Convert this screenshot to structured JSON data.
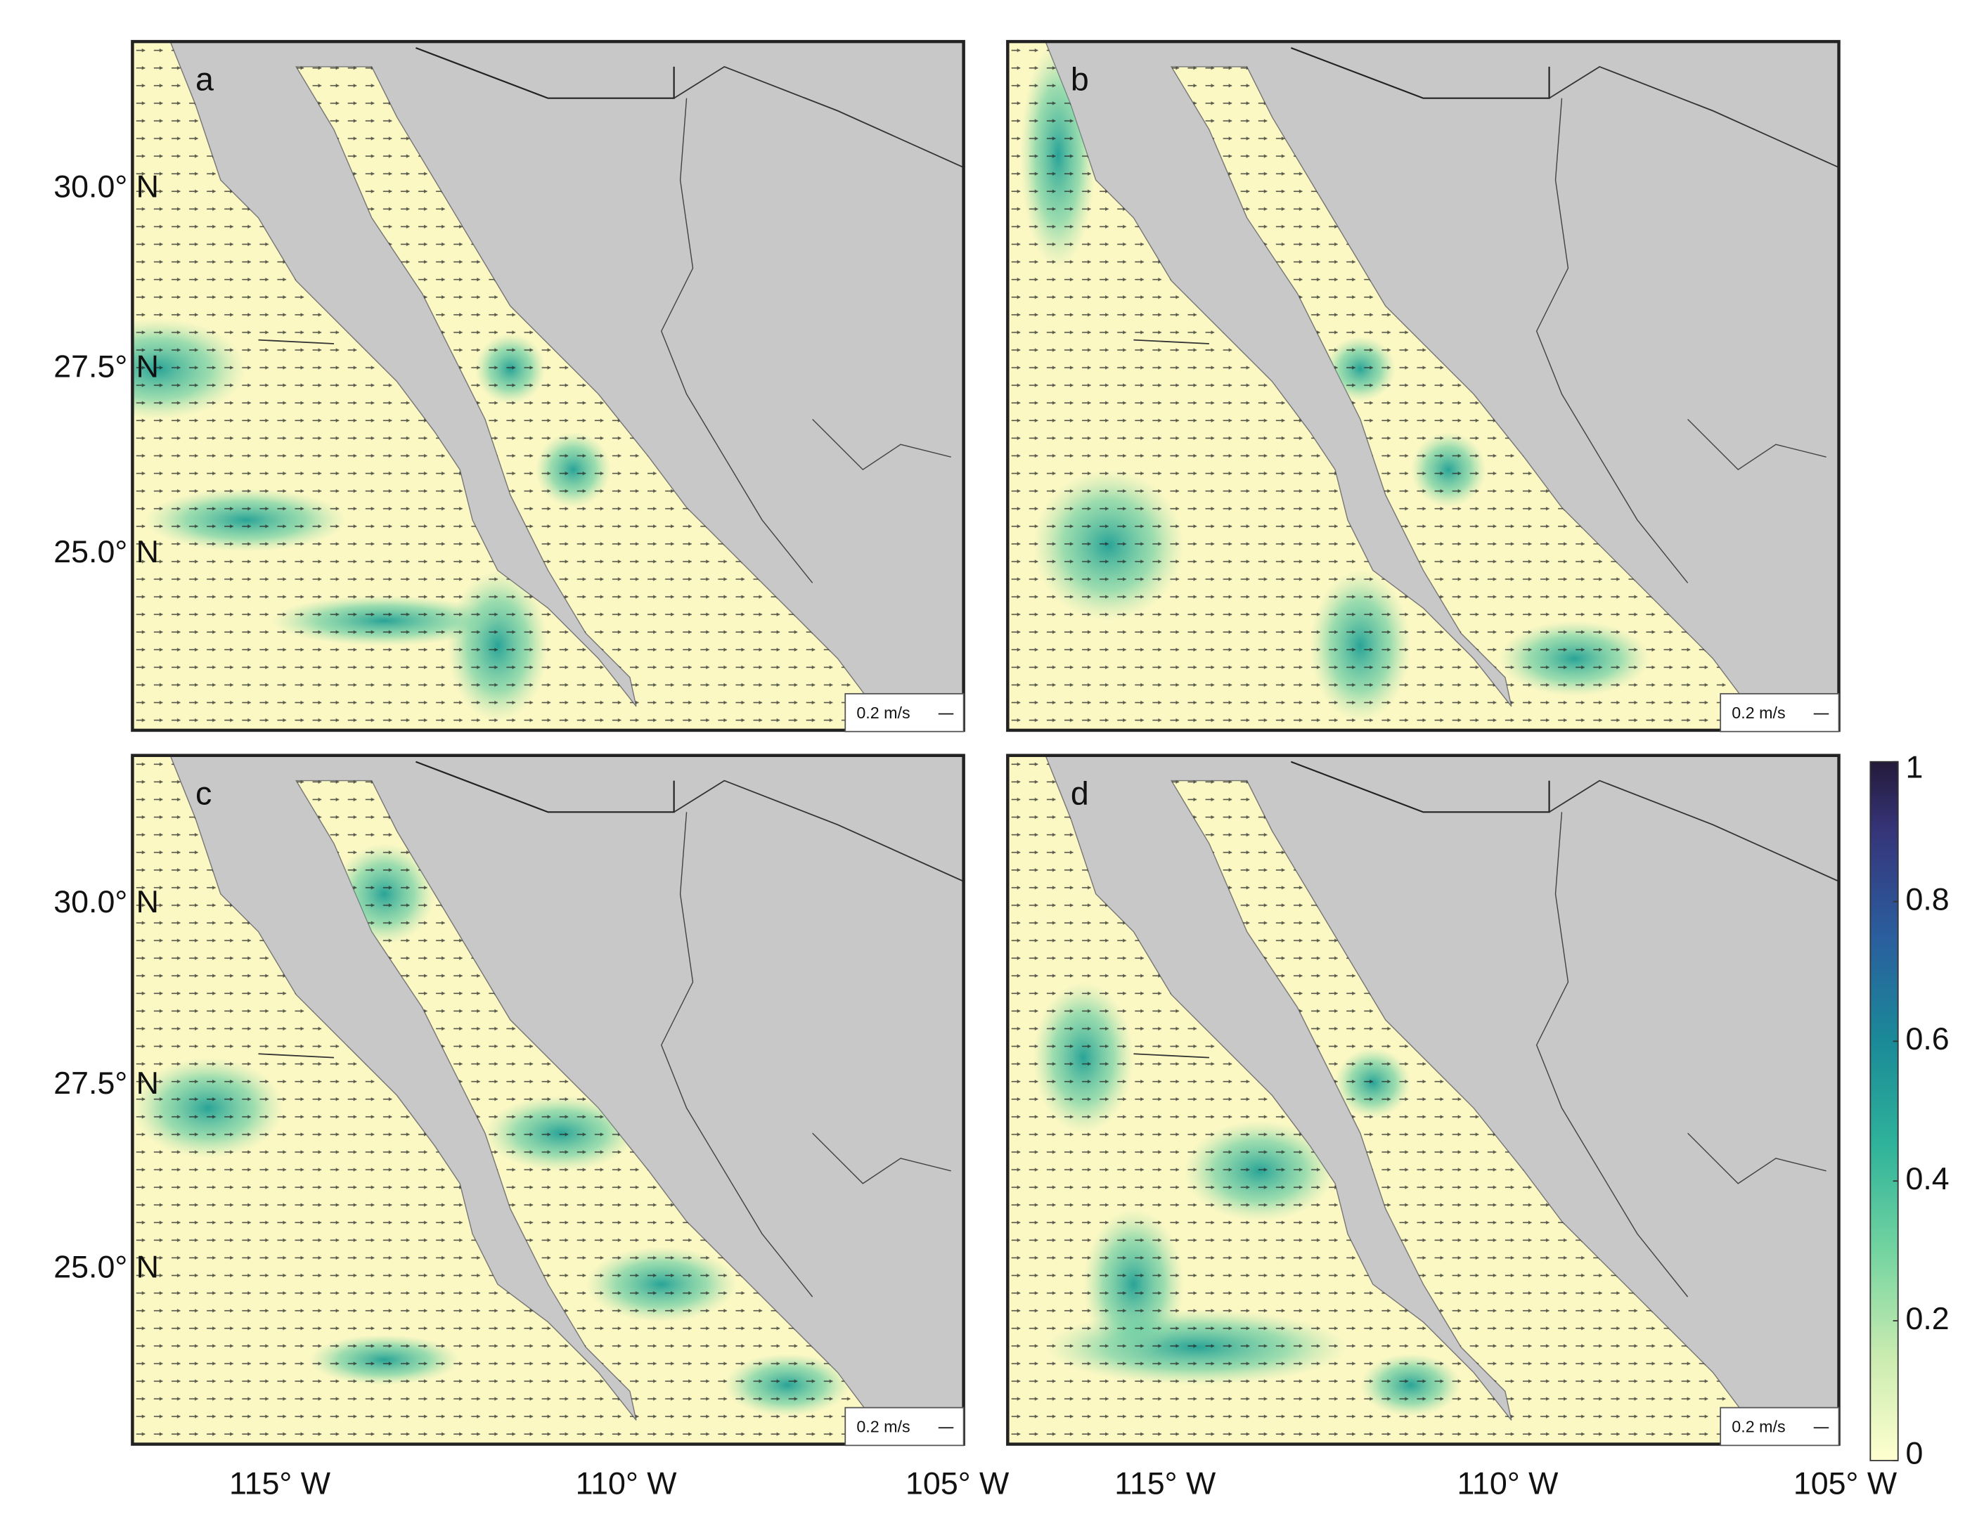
{
  "panels": [
    {
      "label": "a",
      "scale_label": "0.2 m/s"
    },
    {
      "label": "b",
      "scale_label": "0.2 m/s"
    },
    {
      "label": "c",
      "scale_label": "0.2 m/s"
    },
    {
      "label": "d",
      "scale_label": "0.2 m/s"
    }
  ],
  "latitude_labels": [
    "30.0° N",
    "27.5° N",
    "25.0° N"
  ],
  "longitude_labels": [
    "115° W",
    "110° W",
    "105° W"
  ],
  "colorbar": {
    "range": [
      0,
      1
    ],
    "ticks": [
      0,
      0.2,
      0.4,
      0.6,
      0.8,
      1
    ]
  }
}
